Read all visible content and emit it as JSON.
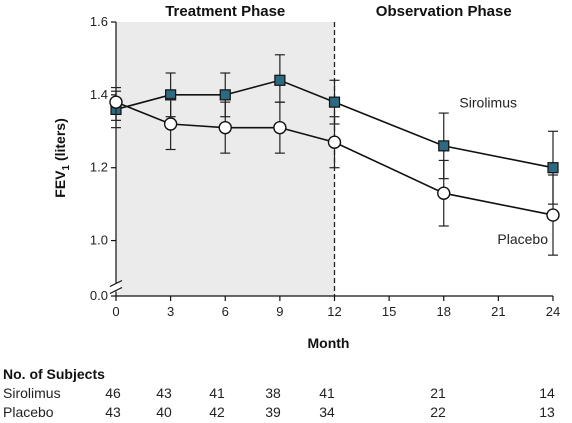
{
  "chart_data": {
    "type": "line",
    "phases": [
      {
        "label": "Treatment Phase",
        "x_range": [
          0,
          12
        ],
        "shaded": true
      },
      {
        "label": "Observation Phase",
        "x_range": [
          12,
          24
        ],
        "shaded": false
      }
    ],
    "phase_divider_x": 12,
    "x": [
      0,
      3,
      6,
      9,
      12,
      18,
      24
    ],
    "xticks": [
      0,
      3,
      6,
      9,
      12,
      15,
      18,
      21,
      24
    ],
    "xlim": [
      0,
      24
    ],
    "xlabel": "Month",
    "yticks": [
      0.0,
      1.0,
      1.2,
      1.4,
      1.6
    ],
    "ytick_labels": [
      "0.0",
      "1.0",
      "1.2",
      "1.4",
      "1.6"
    ],
    "ylim": [
      0.0,
      1.6
    ],
    "y_axis_break": true,
    "ylabel_main": "FEV",
    "ylabel_sub": "1",
    "ylabel_unit": " (liters)",
    "grid": false,
    "series": [
      {
        "name": "Sirolimus",
        "marker": "square",
        "color": "#2b6a80",
        "values": [
          1.36,
          1.4,
          1.4,
          1.44,
          1.38,
          1.26,
          1.2
        ],
        "err_low": [
          1.31,
          1.34,
          1.34,
          1.38,
          1.32,
          1.17,
          1.1
        ],
        "err_high": [
          1.41,
          1.46,
          1.46,
          1.51,
          1.44,
          1.35,
          1.3
        ]
      },
      {
        "name": "Placebo",
        "marker": "circle",
        "color": "#ffffff",
        "values": [
          1.38,
          1.32,
          1.31,
          1.31,
          1.27,
          1.13,
          1.07
        ],
        "err_low": [
          1.33,
          1.25,
          1.24,
          1.24,
          1.2,
          1.04,
          0.96
        ],
        "err_high": [
          1.42,
          1.39,
          1.38,
          1.38,
          1.34,
          1.22,
          1.18
        ]
      }
    ],
    "subjects": {
      "title": "No. of Subjects",
      "rows": [
        {
          "name": "Sirolimus",
          "counts": [
            46,
            43,
            41,
            38,
            41,
            21,
            14
          ]
        },
        {
          "name": "Placebo",
          "counts": [
            43,
            40,
            42,
            39,
            34,
            22,
            13
          ]
        }
      ]
    },
    "colors": {
      "shade": "#ebebeb",
      "line": "#111111"
    }
  }
}
